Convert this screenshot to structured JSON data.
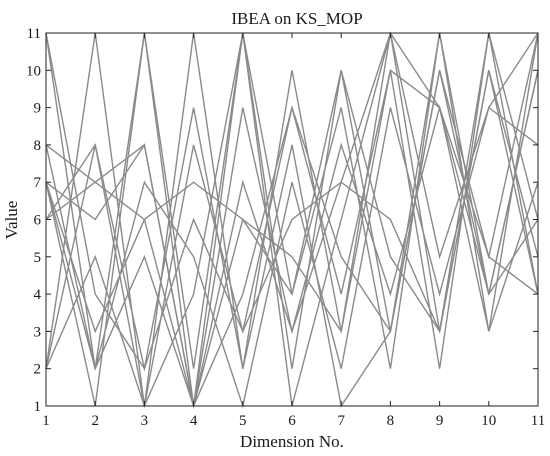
{
  "chart_data": {
    "type": "line",
    "title": "IBEA on KS_MOP",
    "xlabel": "Dimension No.",
    "ylabel": "Value",
    "xlim": [
      1,
      11
    ],
    "ylim": [
      1,
      11
    ],
    "x_ticks": [
      1,
      2,
      3,
      4,
      5,
      6,
      7,
      8,
      9,
      10,
      11
    ],
    "y_ticks": [
      1,
      2,
      3,
      4,
      5,
      6,
      7,
      8,
      9,
      10,
      11
    ],
    "grid": false,
    "legend": "none",
    "line_color": "#8a8a8a",
    "x": [
      1,
      2,
      3,
      4,
      5,
      6,
      7,
      8,
      9,
      10,
      11
    ],
    "series": [
      {
        "values": [
          11,
          2,
          11,
          1,
          11,
          2,
          10,
          5,
          3,
          11,
          4
        ]
      },
      {
        "values": [
          2,
          11,
          1,
          11,
          2,
          10,
          3,
          11,
          9,
          3,
          11
        ]
      },
      {
        "values": [
          8,
          7,
          6,
          1,
          9,
          3,
          7,
          11,
          3,
          10,
          5
        ]
      },
      {
        "values": [
          7,
          1,
          11,
          2,
          11,
          4,
          9,
          2,
          11,
          4,
          10
        ]
      },
      {
        "values": [
          6,
          8,
          2,
          6,
          3,
          9,
          4,
          10,
          2,
          11,
          6
        ]
      },
      {
        "values": [
          7,
          6,
          8,
          1,
          6,
          4,
          10,
          3,
          10,
          5,
          4
        ]
      },
      {
        "values": [
          8,
          2,
          7,
          5,
          1,
          7,
          2,
          9,
          4,
          9,
          11
        ]
      },
      {
        "values": [
          2,
          8,
          1,
          4,
          11,
          1,
          6,
          11,
          5,
          9,
          8
        ]
      },
      {
        "values": [
          7,
          2,
          5,
          1,
          7,
          3,
          8,
          4,
          9,
          4,
          10
        ]
      },
      {
        "values": [
          6,
          7,
          8,
          1,
          4,
          9,
          5,
          3,
          11,
          3,
          7
        ]
      },
      {
        "values": [
          2,
          5,
          1,
          8,
          3,
          6,
          7,
          6,
          3,
          10,
          4
        ]
      },
      {
        "values": [
          7,
          3,
          6,
          7,
          6,
          5,
          3,
          10,
          9,
          5,
          11
        ]
      },
      {
        "values": [
          11,
          4,
          2,
          9,
          2,
          8,
          1,
          3,
          10,
          4,
          6
        ]
      }
    ]
  }
}
